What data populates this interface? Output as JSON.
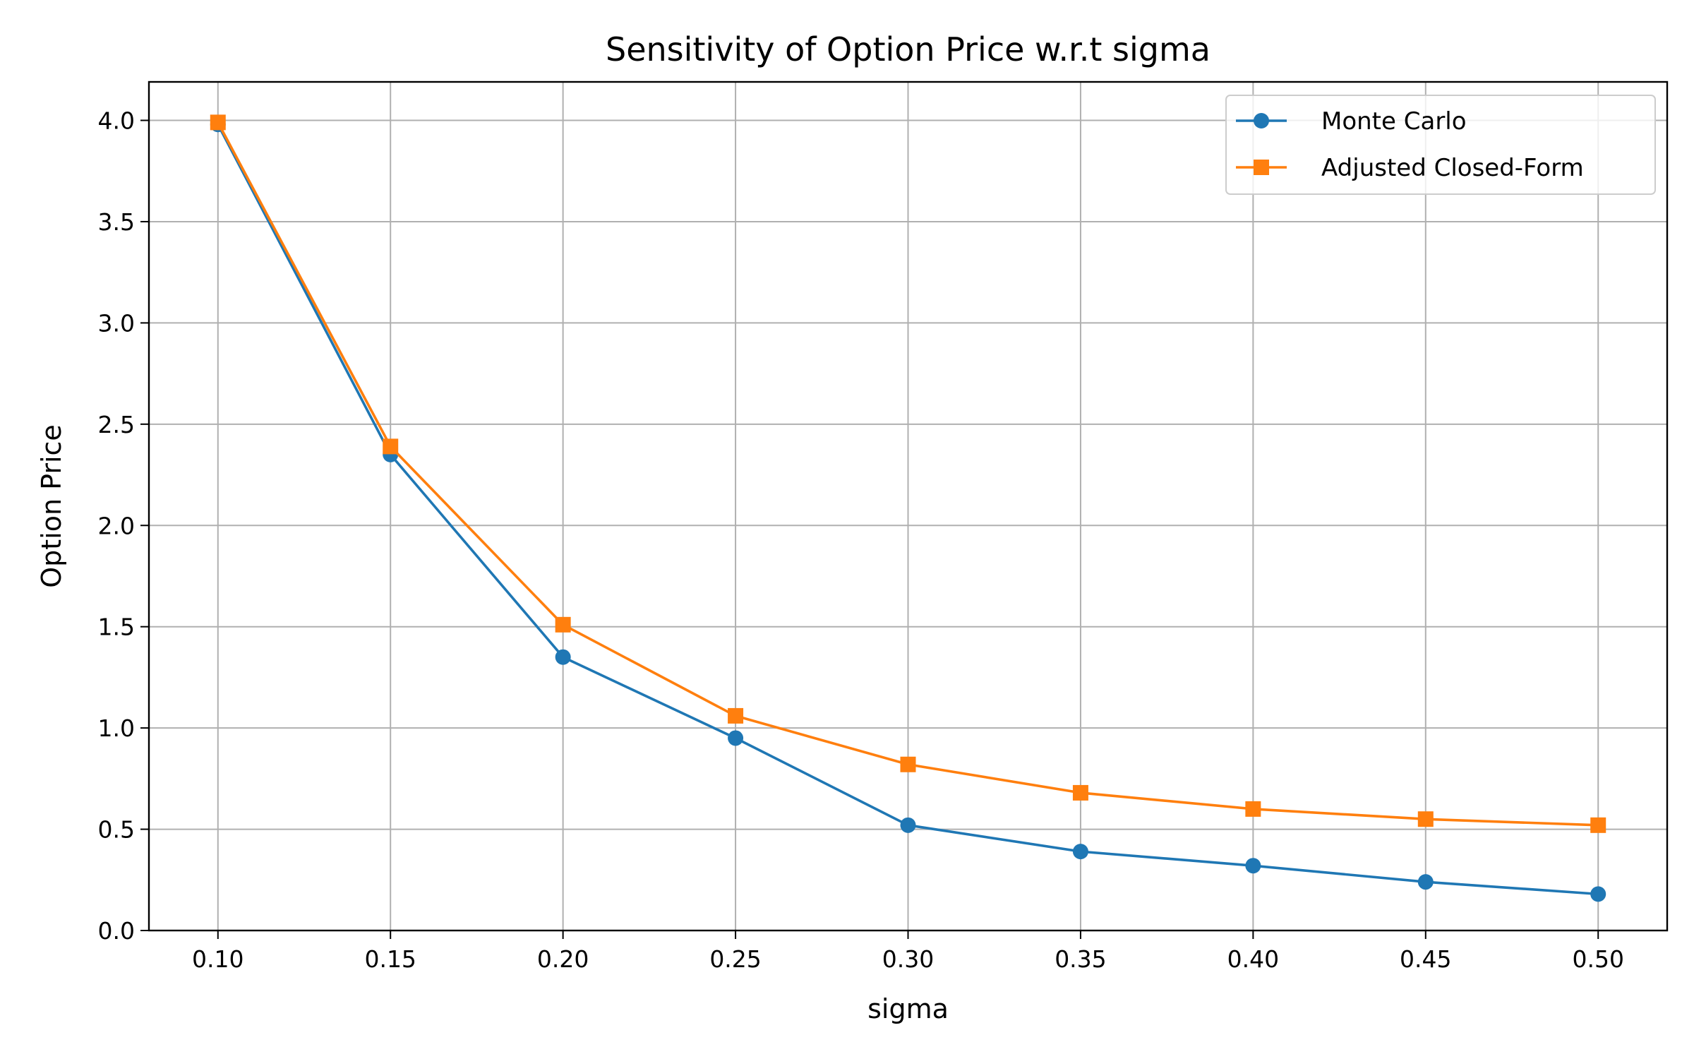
{
  "chart_data": {
    "type": "line",
    "title": "Sensitivity of Option Price w.r.t sigma",
    "xlabel": "sigma",
    "ylabel": "Option Price",
    "x": [
      0.1,
      0.15,
      0.2,
      0.25,
      0.3,
      0.35,
      0.4,
      0.45,
      0.5
    ],
    "xticks": [
      "0.10",
      "0.15",
      "0.20",
      "0.25",
      "0.30",
      "0.35",
      "0.40",
      "0.45",
      "0.50"
    ],
    "yticks": [
      "0.0",
      "0.5",
      "1.0",
      "1.5",
      "2.0",
      "2.5",
      "3.0",
      "3.5",
      "4.0"
    ],
    "xlim": [
      0.08,
      0.52
    ],
    "ylim": [
      0.0,
      4.19
    ],
    "grid": true,
    "legend_position": "top-right",
    "series": [
      {
        "name": "Monte Carlo",
        "marker": "circle",
        "color": "#1f77b4",
        "values": [
          3.98,
          2.35,
          1.35,
          0.95,
          0.52,
          0.39,
          0.32,
          0.24,
          0.18
        ]
      },
      {
        "name": "Adjusted Closed-Form",
        "marker": "square",
        "color": "#ff7f0e",
        "values": [
          3.99,
          2.39,
          1.51,
          1.06,
          0.82,
          0.68,
          0.6,
          0.55,
          0.52
        ]
      }
    ]
  }
}
